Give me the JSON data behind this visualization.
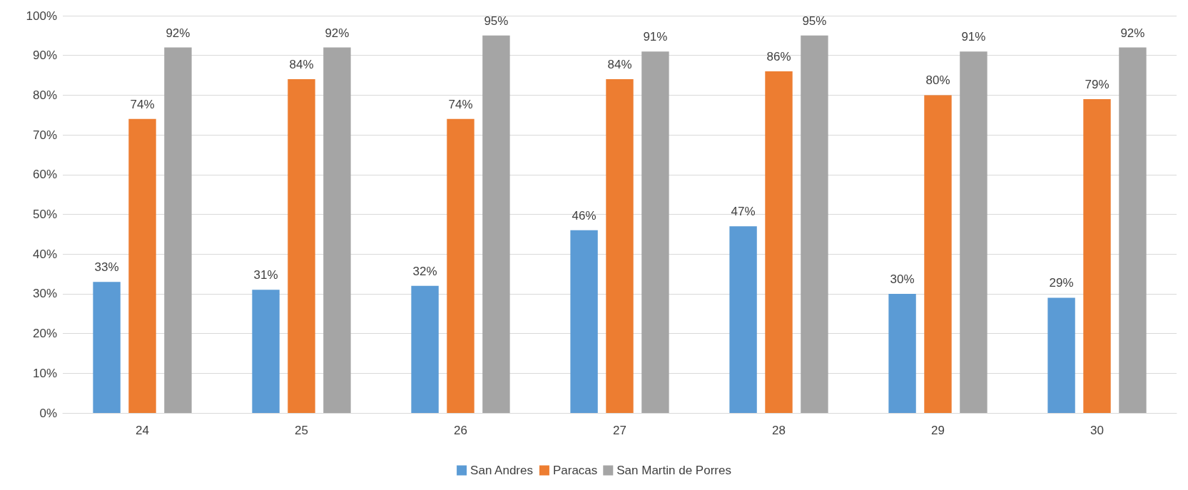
{
  "chart_data": {
    "type": "bar",
    "categories": [
      "24",
      "25",
      "26",
      "27",
      "28",
      "29",
      "30"
    ],
    "series": [
      {
        "name": "San Andres",
        "color": "#5b9bd5",
        "values": [
          33,
          31,
          32,
          46,
          47,
          30,
          29
        ],
        "value_labels": [
          "33%",
          "31%",
          "32%",
          "46%",
          "47%",
          "30%",
          "29%"
        ]
      },
      {
        "name": "Paracas",
        "color": "#ed7d31",
        "values": [
          74,
          84,
          74,
          84,
          86,
          80,
          79
        ],
        "value_labels": [
          "74%",
          "84%",
          "74%",
          "84%",
          "86%",
          "80%",
          "79%"
        ]
      },
      {
        "name": "San Martin de Porres",
        "color": "#a5a5a5",
        "values": [
          92,
          92,
          95,
          91,
          95,
          91,
          92
        ],
        "value_labels": [
          "92%",
          "92%",
          "95%",
          "91%",
          "95%",
          "91%",
          "92%"
        ]
      }
    ],
    "ylim": [
      0,
      100
    ],
    "yticks": [
      {
        "value": 0,
        "label": "0%"
      },
      {
        "value": 10,
        "label": "10%"
      },
      {
        "value": 20,
        "label": "20%"
      },
      {
        "value": 30,
        "label": "30%"
      },
      {
        "value": 40,
        "label": "40%"
      },
      {
        "value": 50,
        "label": "50%"
      },
      {
        "value": 60,
        "label": "60%"
      },
      {
        "value": 70,
        "label": "70%"
      },
      {
        "value": 80,
        "label": "80%"
      },
      {
        "value": 90,
        "label": "90%"
      },
      {
        "value": 100,
        "label": "100%"
      }
    ],
    "grid": "y",
    "legend": "bottom"
  }
}
